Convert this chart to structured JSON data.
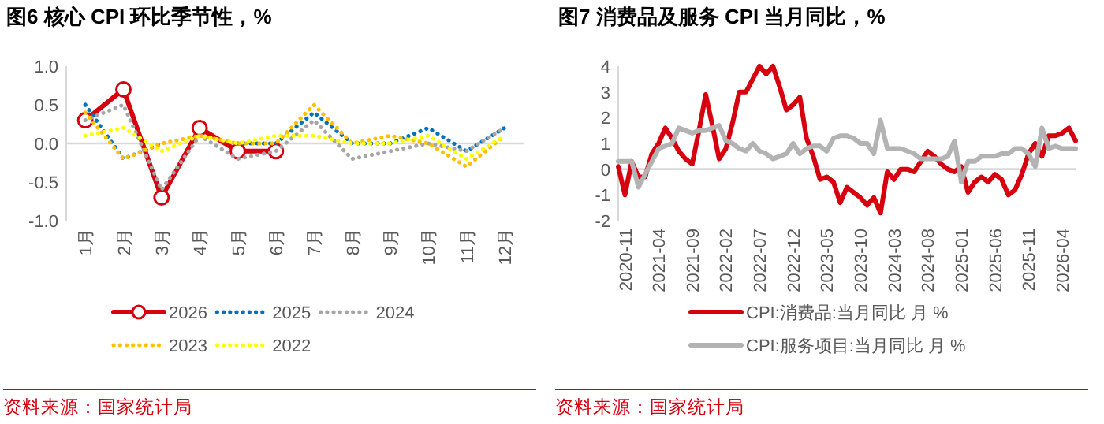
{
  "chart_data": [
    {
      "type": "line",
      "title": "图6  核心 CPI 环比季节性，%",
      "categories": [
        "1月",
        "2月",
        "3月",
        "4月",
        "5月",
        "6月",
        "7月",
        "8月",
        "9月",
        "10月",
        "11月",
        "12月"
      ],
      "ylim": [
        -1,
        1
      ],
      "yticks": [
        {
          "value": -1,
          "label": "-1.0"
        },
        {
          "value": -0.5,
          "label": "-0.5"
        },
        {
          "value": 0,
          "label": "0.0"
        },
        {
          "value": 0.5,
          "label": "0.5"
        },
        {
          "value": 1,
          "label": "1.0"
        }
      ],
      "legend": "bottom",
      "series": [
        {
          "name": "2026",
          "color": "#d7000f",
          "marker": "circle",
          "line_style": "solid",
          "values": [
            0.3,
            0.7,
            -0.7,
            0.2,
            -0.1,
            -0.1,
            null,
            null,
            null,
            null,
            null,
            null
          ]
        },
        {
          "name": "2025",
          "color": "#0070c0",
          "marker": "none",
          "line_style": "dotted",
          "values": [
            0.5,
            -0.2,
            0.0,
            null,
            0.0,
            0.0,
            0.4,
            0.0,
            0.0,
            0.2,
            -0.1,
            0.2
          ]
        },
        {
          "name": "2024",
          "color": "#a6a6a6",
          "marker": "none",
          "line_style": "dotted",
          "values": [
            0.3,
            0.5,
            -0.6,
            0.1,
            -0.2,
            -0.1,
            0.3,
            -0.2,
            -0.1,
            0.0,
            -0.1,
            0.2
          ]
        },
        {
          "name": "2023",
          "color": "#ffc000",
          "marker": "none",
          "line_style": "dotted",
          "values": [
            0.4,
            -0.2,
            0.0,
            0.1,
            0.0,
            0.0,
            0.5,
            0.0,
            0.1,
            0.0,
            -0.3,
            0.1
          ]
        },
        {
          "name": "2022",
          "color": "#ffff00",
          "marker": "none",
          "line_style": "dotted",
          "values": [
            0.1,
            0.2,
            -0.1,
            0.1,
            0.0,
            0.1,
            0.1,
            0.0,
            0.0,
            0.1,
            -0.2,
            0.1
          ]
        }
      ],
      "annotations": [
        "资料来源：国家统计局"
      ]
    },
    {
      "type": "line",
      "title": "图7  消费品及服务 CPI 当月同比，%",
      "x": [
        "2020-10",
        "2020-11",
        "2020-12",
        "2021-01",
        "2021-02",
        "2021-03",
        "2021-04",
        "2021-05",
        "2021-06",
        "2021-07",
        "2021-08",
        "2021-09",
        "2021-10",
        "2021-11",
        "2021-12",
        "2022-01",
        "2022-02",
        "2022-03",
        "2022-04",
        "2022-05",
        "2022-06",
        "2022-07",
        "2022-08",
        "2022-09",
        "2022-10",
        "2022-11",
        "2022-12",
        "2023-01",
        "2023-02",
        "2023-03",
        "2023-04",
        "2023-05",
        "2023-06",
        "2023-07",
        "2023-08",
        "2023-09",
        "2023-10",
        "2023-11",
        "2023-12",
        "2024-01",
        "2024-02",
        "2024-03",
        "2024-04",
        "2024-05",
        "2024-06",
        "2024-07",
        "2024-08",
        "2024-09",
        "2024-10",
        "2024-11",
        "2024-12",
        "2025-01",
        "2025-02",
        "2025-03",
        "2025-04",
        "2025-05",
        "2025-06",
        "2025-07",
        "2025-08",
        "2025-09",
        "2025-10",
        "2025-11",
        "2025-12",
        "2026-01",
        "2026-02",
        "2026-03",
        "2026-04",
        "2026-05",
        "2026-06"
      ],
      "xlim": [
        "2020-10",
        "2026-06"
      ],
      "xticks": [
        "2020-11",
        "2021-04",
        "2021-09",
        "2022-02",
        "2022-07",
        "2022-12",
        "2023-05",
        "2023-10",
        "2024-03",
        "2024-08",
        "2025-01",
        "2025-06",
        "2025-11",
        "2026-04"
      ],
      "ylim": [
        -2,
        4
      ],
      "yticks": [
        -2,
        -1,
        0,
        1,
        2,
        3,
        4
      ],
      "legend": "bottom",
      "series": [
        {
          "name": "CPI:消费品:当月同比 月 %",
          "color": "#d7000f",
          "line_style": "solid",
          "values": [
            0.1,
            -1.0,
            0.3,
            -0.3,
            -0.3,
            0.6,
            1.0,
            1.6,
            1.2,
            0.7,
            0.4,
            0.2,
            1.5,
            2.9,
            1.7,
            0.4,
            0.8,
            1.8,
            3.0,
            3.0,
            3.5,
            4.0,
            3.7,
            4.0,
            3.2,
            2.3,
            2.5,
            2.8,
            1.2,
            0.5,
            -0.4,
            -0.3,
            -0.5,
            -1.3,
            -0.7,
            -0.9,
            -1.1,
            -1.4,
            -1.1,
            -1.7,
            -0.1,
            -0.4,
            0.0,
            0.0,
            -0.1,
            0.3,
            0.7,
            0.5,
            0.2,
            0.0,
            -0.1,
            0.1,
            -0.9,
            -0.5,
            -0.3,
            -0.5,
            -0.2,
            -0.4,
            -1.0,
            -0.8,
            -0.2,
            0.6,
            1.0,
            0.5,
            1.3,
            1.3,
            1.4,
            1.6,
            1.1
          ]
        },
        {
          "name": "CPI:服务项目:当月同比 月 %",
          "color": "#b3b3b3",
          "line_style": "solid",
          "values": [
            0.3,
            0.3,
            0.3,
            -0.7,
            -0.2,
            0.3,
            0.8,
            0.9,
            1.0,
            1.6,
            1.5,
            1.4,
            1.5,
            1.5,
            1.6,
            1.7,
            1.1,
            1.0,
            0.8,
            0.7,
            1.0,
            0.7,
            0.6,
            0.4,
            0.5,
            0.6,
            1.0,
            0.6,
            0.8,
            0.9,
            0.9,
            0.7,
            1.2,
            1.3,
            1.3,
            1.2,
            1.0,
            1.0,
            0.6,
            1.9,
            0.8,
            0.8,
            0.8,
            0.7,
            0.6,
            0.4,
            0.4,
            0.4,
            0.4,
            0.5,
            1.1,
            -0.5,
            0.3,
            0.3,
            0.5,
            0.5,
            0.5,
            0.6,
            0.6,
            0.8,
            0.8,
            0.6,
            0.1,
            1.6,
            0.8,
            0.9,
            0.8,
            0.8,
            0.8
          ]
        }
      ],
      "annotations": [
        "资料来源：国家统计局"
      ]
    }
  ]
}
